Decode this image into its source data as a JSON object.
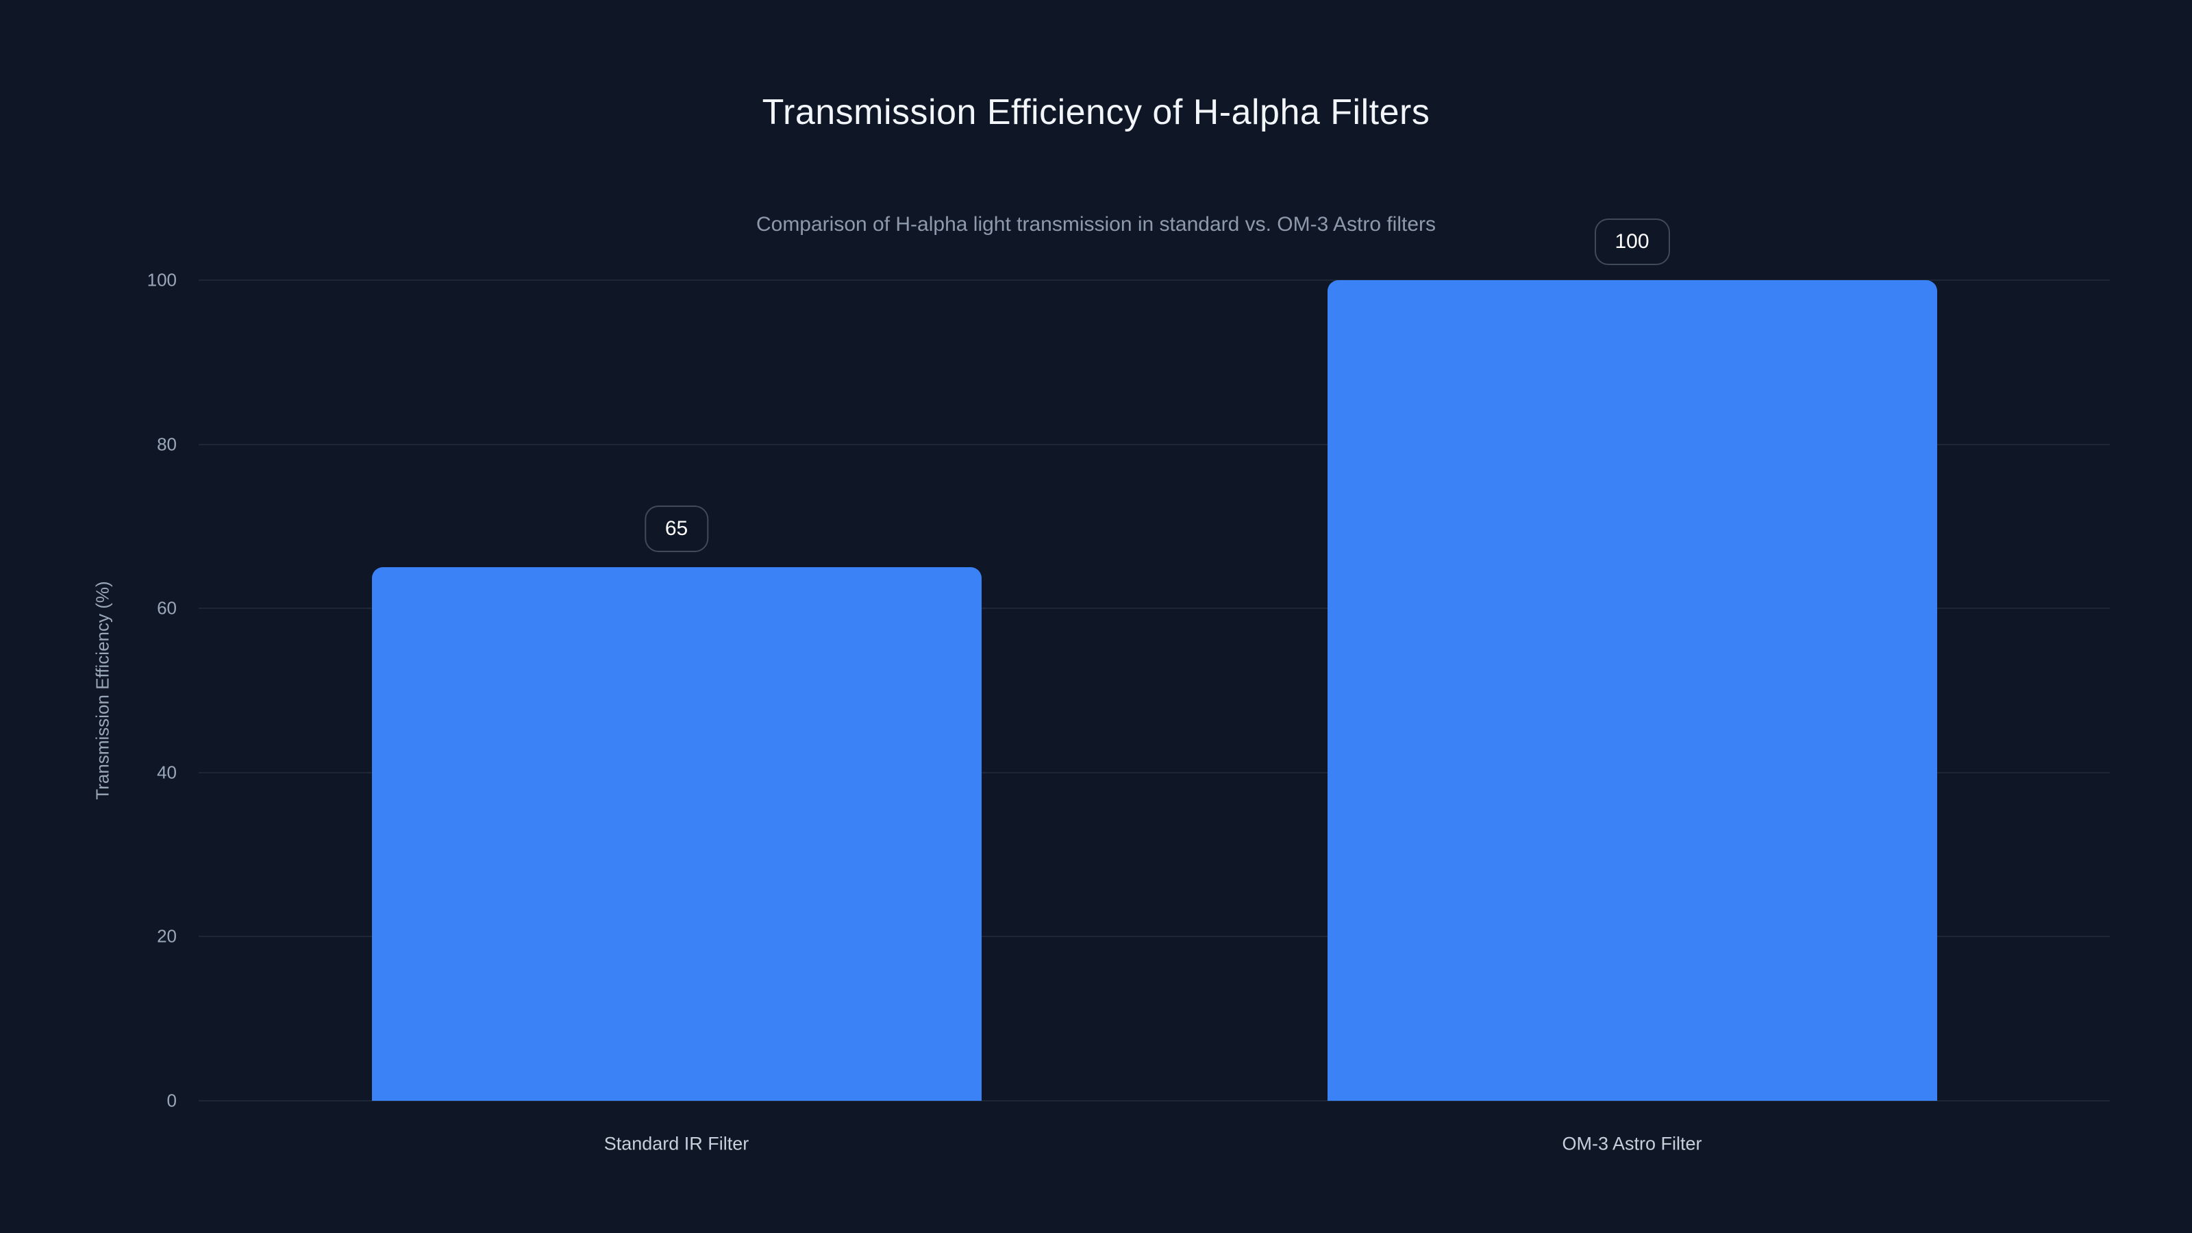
{
  "page": {
    "background_color": "#0f1726"
  },
  "header": {
    "title": "Transmission Efficiency of H-alpha Filters",
    "subtitle": "Comparison of H-alpha light transmission in standard vs. OM-3 Astro filters"
  },
  "chart_data": {
    "type": "bar",
    "title": "Transmission Efficiency of H-alpha Filters",
    "subtitle": "Comparison of H-alpha light transmission in standard vs. OM-3 Astro filters",
    "categories": [
      "Standard IR Filter",
      "OM-3 Astro Filter"
    ],
    "values": [
      65,
      100
    ],
    "value_labels": [
      "65",
      "100"
    ],
    "xlabel": "",
    "ylabel": "Transmission Efficiency (%)",
    "ylim": [
      0,
      100
    ],
    "yticks": [
      0,
      20,
      40,
      60,
      80,
      100
    ],
    "grid": "horizontal-only",
    "legend": "none",
    "colors": {
      "bar": "#3b82f6",
      "background": "#0f1726",
      "gridline": "#1e2736",
      "title_text": "#f2f5f9",
      "subtitle_text": "#8e9aac",
      "tick_text": "#9aa7b9",
      "category_text": "#c6cfda",
      "value_label_text": "#ffffff",
      "value_label_border": "#3f4a5b"
    }
  }
}
